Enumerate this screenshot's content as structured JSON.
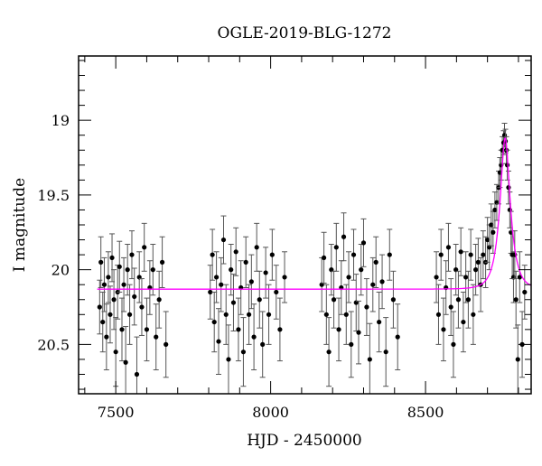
{
  "chart_data": {
    "type": "scatter",
    "title": "OGLE-2019-BLG-1272",
    "xlabel": "HJD - 2450000",
    "ylabel": "I magnitude",
    "xlim": [
      7380,
      8841
    ],
    "ylim": [
      20.83,
      18.57
    ],
    "y_inverted": true,
    "xticks": [
      7500,
      8000,
      8500
    ],
    "xtick_labels": [
      "7500",
      "8000",
      "8500"
    ],
    "yticks": [
      19,
      19.5,
      20,
      20.5
    ],
    "ytick_labels": [
      "19",
      "19.5",
      "20",
      "20.5"
    ],
    "grid": false,
    "colors": {
      "points": "#000000",
      "errorbars": "#555555",
      "model": "#ff00ff"
    },
    "model": {
      "type": "Paczynski",
      "t0": 8757,
      "u0": 0.42,
      "tE": 31,
      "baseline_mag": 20.13
    },
    "points": [
      [
        7448,
        20.25,
        0.18
      ],
      [
        7452,
        19.95,
        0.17
      ],
      [
        7458,
        20.35,
        0.2
      ],
      [
        7463,
        20.1,
        0.18
      ],
      [
        7470,
        20.45,
        0.22
      ],
      [
        7476,
        20.05,
        0.17
      ],
      [
        7482,
        20.3,
        0.19
      ],
      [
        7488,
        19.92,
        0.16
      ],
      [
        7494,
        20.2,
        0.2
      ],
      [
        7500,
        20.55,
        0.23
      ],
      [
        7506,
        20.15,
        0.18
      ],
      [
        7512,
        19.98,
        0.17
      ],
      [
        7520,
        20.4,
        0.21
      ],
      [
        7526,
        20.1,
        0.18
      ],
      [
        7532,
        20.62,
        0.24
      ],
      [
        7538,
        20.0,
        0.17
      ],
      [
        7545,
        20.3,
        0.2
      ],
      [
        7552,
        19.9,
        0.16
      ],
      [
        7560,
        20.18,
        0.19
      ],
      [
        7568,
        20.7,
        0.25
      ],
      [
        7576,
        20.05,
        0.17
      ],
      [
        7584,
        20.25,
        0.19
      ],
      [
        7592,
        19.85,
        0.16
      ],
      [
        7600,
        20.4,
        0.21
      ],
      [
        7610,
        20.12,
        0.18
      ],
      [
        7620,
        20.0,
        0.17
      ],
      [
        7630,
        20.45,
        0.22
      ],
      [
        7640,
        20.2,
        0.19
      ],
      [
        7650,
        19.95,
        0.17
      ],
      [
        7662,
        20.5,
        0.22
      ],
      [
        7805,
        20.15,
        0.18
      ],
      [
        7812,
        19.9,
        0.17
      ],
      [
        7818,
        20.35,
        0.2
      ],
      [
        7825,
        20.05,
        0.17
      ],
      [
        7832,
        20.48,
        0.22
      ],
      [
        7840,
        20.1,
        0.18
      ],
      [
        7848,
        19.8,
        0.16
      ],
      [
        7856,
        20.3,
        0.2
      ],
      [
        7864,
        20.6,
        0.23
      ],
      [
        7872,
        20.0,
        0.17
      ],
      [
        7880,
        20.22,
        0.19
      ],
      [
        7888,
        19.88,
        0.16
      ],
      [
        7896,
        20.4,
        0.21
      ],
      [
        7904,
        20.12,
        0.18
      ],
      [
        7912,
        20.55,
        0.23
      ],
      [
        7920,
        19.95,
        0.17
      ],
      [
        7930,
        20.3,
        0.2
      ],
      [
        7938,
        20.08,
        0.18
      ],
      [
        7946,
        20.45,
        0.22
      ],
      [
        7955,
        19.85,
        0.16
      ],
      [
        7964,
        20.2,
        0.19
      ],
      [
        7974,
        20.5,
        0.22
      ],
      [
        7984,
        20.02,
        0.17
      ],
      [
        7994,
        20.3,
        0.2
      ],
      [
        8005,
        19.9,
        0.17
      ],
      [
        8018,
        20.15,
        0.18
      ],
      [
        8030,
        20.4,
        0.21
      ],
      [
        8045,
        20.05,
        0.17
      ],
      [
        8165,
        20.1,
        0.18
      ],
      [
        8172,
        19.92,
        0.17
      ],
      [
        8180,
        20.3,
        0.2
      ],
      [
        8188,
        20.55,
        0.23
      ],
      [
        8196,
        20.0,
        0.17
      ],
      [
        8204,
        20.2,
        0.19
      ],
      [
        8212,
        19.85,
        0.16
      ],
      [
        8220,
        20.4,
        0.21
      ],
      [
        8228,
        20.12,
        0.18
      ],
      [
        8236,
        19.78,
        0.16
      ],
      [
        8244,
        20.3,
        0.2
      ],
      [
        8252,
        20.05,
        0.17
      ],
      [
        8260,
        20.5,
        0.22
      ],
      [
        8268,
        19.9,
        0.17
      ],
      [
        8276,
        20.22,
        0.19
      ],
      [
        8284,
        20.42,
        0.21
      ],
      [
        8292,
        20.0,
        0.17
      ],
      [
        8300,
        19.82,
        0.16
      ],
      [
        8310,
        20.25,
        0.19
      ],
      [
        8320,
        20.6,
        0.24
      ],
      [
        8330,
        20.1,
        0.18
      ],
      [
        8340,
        19.95,
        0.17
      ],
      [
        8350,
        20.35,
        0.2
      ],
      [
        8360,
        20.08,
        0.18
      ],
      [
        8372,
        20.55,
        0.23
      ],
      [
        8384,
        19.9,
        0.17
      ],
      [
        8396,
        20.2,
        0.19
      ],
      [
        8410,
        20.45,
        0.22
      ],
      [
        8535,
        20.05,
        0.17
      ],
      [
        8542,
        20.3,
        0.2
      ],
      [
        8550,
        19.9,
        0.17
      ],
      [
        8558,
        20.4,
        0.21
      ],
      [
        8566,
        20.12,
        0.18
      ],
      [
        8574,
        19.85,
        0.16
      ],
      [
        8582,
        20.25,
        0.19
      ],
      [
        8590,
        20.5,
        0.22
      ],
      [
        8598,
        20.0,
        0.17
      ],
      [
        8606,
        20.2,
        0.19
      ],
      [
        8614,
        19.88,
        0.16
      ],
      [
        8622,
        20.35,
        0.2
      ],
      [
        8630,
        20.05,
        0.17
      ],
      [
        8638,
        20.2,
        0.19
      ],
      [
        8646,
        19.9,
        0.17
      ],
      [
        8654,
        20.3,
        0.2
      ],
      [
        8662,
        20.0,
        0.17
      ],
      [
        8670,
        19.95,
        0.16
      ],
      [
        8678,
        20.1,
        0.18
      ],
      [
        8686,
        19.9,
        0.16
      ],
      [
        8694,
        19.95,
        0.17
      ],
      [
        8700,
        19.8,
        0.15
      ],
      [
        8706,
        19.85,
        0.15
      ],
      [
        8712,
        19.7,
        0.14
      ],
      [
        8718,
        19.75,
        0.14
      ],
      [
        8724,
        19.6,
        0.12
      ],
      [
        8730,
        19.55,
        0.12
      ],
      [
        8736,
        19.45,
        0.11
      ],
      [
        8740,
        19.35,
        0.1
      ],
      [
        8744,
        19.3,
        0.1
      ],
      [
        8748,
        19.2,
        0.09
      ],
      [
        8752,
        19.15,
        0.08
      ],
      [
        8755,
        19.1,
        0.08
      ],
      [
        8758,
        19.14,
        0.08
      ],
      [
        8761,
        19.2,
        0.09
      ],
      [
        8764,
        19.3,
        0.1
      ],
      [
        8768,
        19.45,
        0.11
      ],
      [
        8772,
        19.6,
        0.12
      ],
      [
        8776,
        19.75,
        0.14
      ],
      [
        8780,
        19.9,
        0.16
      ],
      [
        8784,
        20.05,
        0.17
      ],
      [
        8788,
        19.9,
        0.16
      ],
      [
        8792,
        20.2,
        0.19
      ],
      [
        8798,
        20.6,
        0.23
      ],
      [
        8804,
        20.05,
        0.17
      ],
      [
        8812,
        20.5,
        0.22
      ],
      [
        8820,
        20.15,
        0.18
      ]
    ]
  }
}
